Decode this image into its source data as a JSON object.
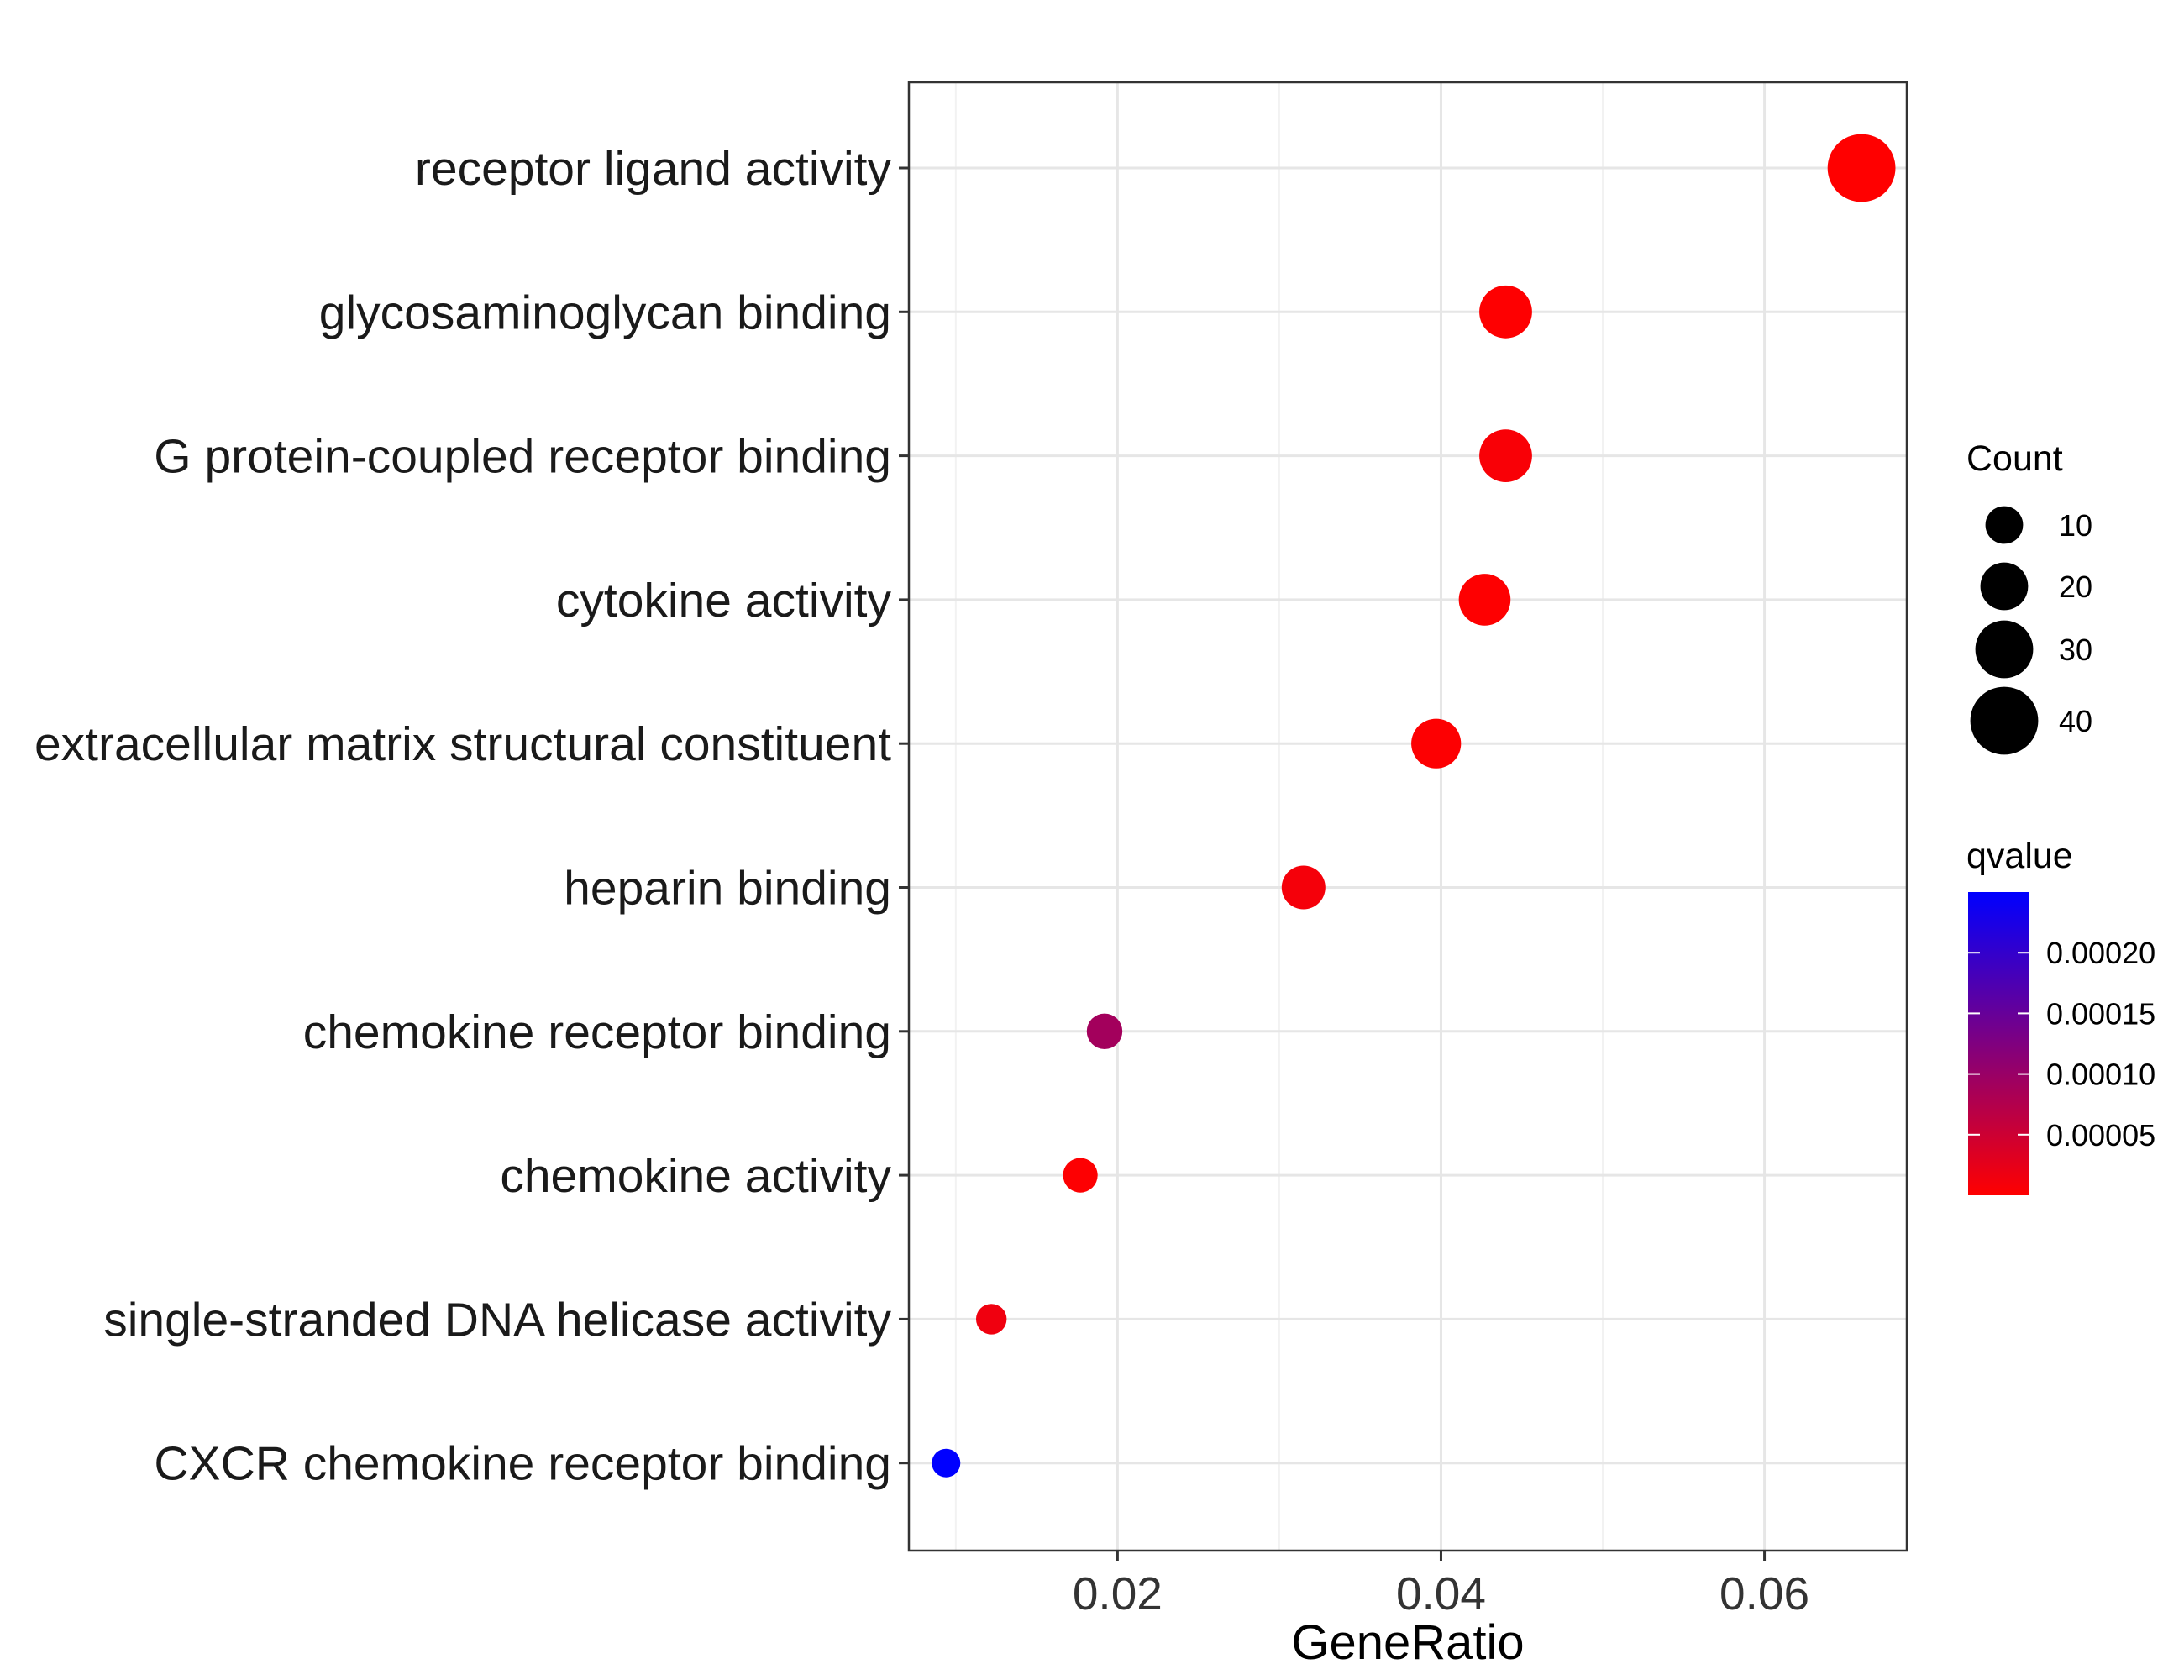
{
  "chart_data": {
    "type": "scatter",
    "xlabel": "GeneRatio",
    "ylabel": "",
    "xlim": [
      0.0071,
      0.0688
    ],
    "xticks": [
      0.02,
      0.04,
      0.06
    ],
    "xtick_labels": [
      "0.02",
      "0.04",
      "0.06"
    ],
    "grid": true,
    "categories": [
      "receptor ligand activity",
      "glycosaminoglycan binding",
      "G protein-coupled receptor binding",
      "cytokine activity",
      "extracellular matrix structural constituent",
      "heparin binding",
      "chemokine receptor binding",
      "chemokine activity",
      "single-stranded DNA helicase activity",
      "CXCR chemokine receptor binding"
    ],
    "points": [
      {
        "category": "receptor ligand activity",
        "gene_ratio": 0.066,
        "count": 45,
        "qvalue": 1e-07
      },
      {
        "category": "glycosaminoglycan binding",
        "gene_ratio": 0.044,
        "count": 30,
        "qvalue": 1e-06
      },
      {
        "category": "G protein-coupled receptor binding",
        "gene_ratio": 0.044,
        "count": 30,
        "qvalue": 6e-06
      },
      {
        "category": "cytokine activity",
        "gene_ratio": 0.0427,
        "count": 29,
        "qvalue": 5e-07
      },
      {
        "category": "extracellular matrix structural constituent",
        "gene_ratio": 0.0397,
        "count": 27,
        "qvalue": 1.5e-06
      },
      {
        "category": "heparin binding",
        "gene_ratio": 0.0315,
        "count": 21,
        "qvalue": 1e-05
      },
      {
        "category": "chemokine receptor binding",
        "gene_ratio": 0.0192,
        "count": 13,
        "qvalue": 9e-05
      },
      {
        "category": "chemokine activity",
        "gene_ratio": 0.0177,
        "count": 12,
        "qvalue": 2e-06
      },
      {
        "category": "single-stranded DNA helicase activity",
        "gene_ratio": 0.0122,
        "count": 8,
        "qvalue": 1.5e-05
      },
      {
        "category": "CXCR chemokine receptor binding",
        "gene_ratio": 0.0094,
        "count": 6,
        "qvalue": 0.00025
      }
    ],
    "size_legend": {
      "title": "Count",
      "breaks": [
        10,
        20,
        30,
        40
      ],
      "labels": [
        "10",
        "20",
        "30",
        "40"
      ]
    },
    "color_legend": {
      "title": "qvalue",
      "low_color": "#FF0000",
      "high_color": "#0000FF",
      "range": [
        0,
        0.00025
      ],
      "breaks": [
        5e-05,
        0.0001,
        0.00015,
        0.0002
      ],
      "labels": [
        "0.00005",
        "0.00010",
        "0.00015",
        "0.00020"
      ]
    },
    "legend_position": "right"
  }
}
